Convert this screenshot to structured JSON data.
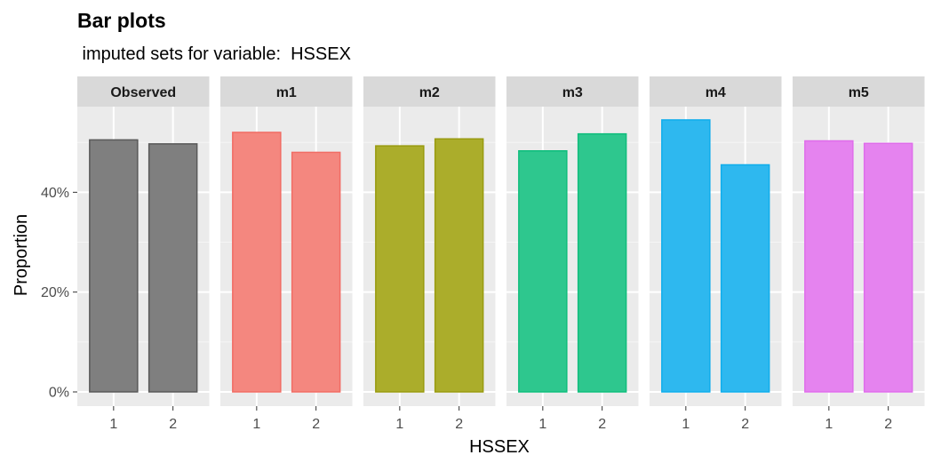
{
  "chart_data": {
    "type": "bar",
    "title": "Bar plots",
    "subtitle": " imputed sets for variable:  HSSEX",
    "xlabel": "HSSEX",
    "ylabel": "Proportion",
    "categories": [
      "1",
      "2"
    ],
    "ylim": [
      0,
      0.6
    ],
    "y_ticks": [
      {
        "value": 0,
        "label": "0%"
      },
      {
        "value": 0.2,
        "label": "20%"
      },
      {
        "value": 0.4,
        "label": "40%"
      }
    ],
    "grid": true,
    "legend": "none",
    "panels": [
      {
        "name": "Observed",
        "values": [
          0.505,
          0.497
        ],
        "fill": "#7f7f7f",
        "stroke": "#595959"
      },
      {
        "name": "m1",
        "values": [
          0.52,
          0.48
        ],
        "fill": "#f4877f",
        "stroke": "#f16c64"
      },
      {
        "name": "m2",
        "values": [
          0.493,
          0.507
        ],
        "fill": "#abad2b",
        "stroke": "#989a0f"
      },
      {
        "name": "m3",
        "values": [
          0.483,
          0.517
        ],
        "fill": "#2ec78e",
        "stroke": "#0fbd7c"
      },
      {
        "name": "m4",
        "values": [
          0.545,
          0.455
        ],
        "fill": "#2eb8ef",
        "stroke": "#0fadec"
      },
      {
        "name": "m5",
        "values": [
          0.503,
          0.498
        ],
        "fill": "#e583ef",
        "stroke": "#df6deb"
      }
    ]
  }
}
